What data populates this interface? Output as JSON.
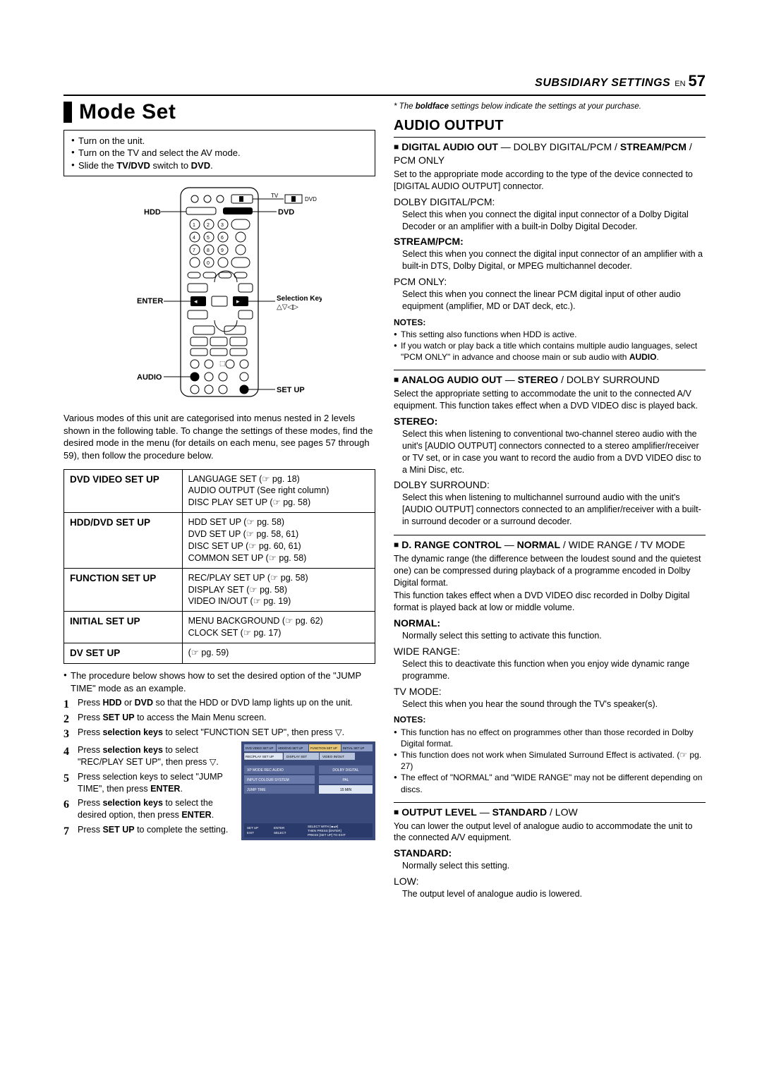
{
  "header": {
    "section": "SUBSIDIARY SETTINGS",
    "lang": "EN",
    "page": "57"
  },
  "footnote_pre": "* The ",
  "footnote_b": "boldface",
  "footnote_post": " settings below indicate the settings at your purchase.",
  "left": {
    "title": "Mode Set",
    "box": [
      "Turn on the unit.",
      "Turn on the TV and select the AV mode.",
      "Slide the TV/DVD switch to DVD."
    ],
    "box_line3_pre": "Slide the ",
    "box_line3_b": "TV/DVD",
    "box_line3_mid": " switch to ",
    "box_line3_b2": "DVD",
    "remote_labels": {
      "hdd": "HDD",
      "dvd": "DVD",
      "enter": "ENTER",
      "audio": "AUDIO",
      "setup": "SET UP",
      "selkeys": "Selection Keys",
      "selsym": "△▽◁▷",
      "tvdvd_tv": "TV",
      "tvdvd_dvd": "DVD"
    },
    "intro": "Various modes of this unit are categorised into menus nested in 2 levels shown in the following table. To change the settings of these modes, find the desired mode in the menu (for details on each menu, see pages 57 through 59), then follow the procedure below.",
    "menus": [
      {
        "h": "DVD VIDEO SET UP",
        "items": [
          "LANGUAGE SET (☞ pg. 18)",
          "AUDIO OUTPUT (See right column)",
          "DISC PLAY SET UP (☞ pg. 58)"
        ]
      },
      {
        "h": "HDD/DVD SET UP",
        "items": [
          "HDD SET UP (☞ pg. 58)",
          "DVD SET UP (☞ pg. 58, 61)",
          "DISC SET UP (☞ pg. 60, 61)",
          "COMMON SET UP (☞ pg. 58)"
        ]
      },
      {
        "h": "FUNCTION SET UP",
        "items": [
          "REC/PLAY SET UP (☞ pg. 58)",
          "DISPLAY SET (☞ pg. 58)",
          "VIDEO IN/OUT (☞ pg. 19)"
        ]
      },
      {
        "h": "INITIAL SET UP",
        "items": [
          "MENU BACKGROUND (☞ pg. 62)",
          "CLOCK SET (☞ pg. 17)"
        ]
      },
      {
        "h": "DV SET UP",
        "items": [
          "(☞ pg. 59)"
        ]
      }
    ],
    "pre_step": "The procedure below shows how to set the desired option of the \"JUMP TIME\" mode as an example.",
    "steps": {
      "s1_pre": "Press ",
      "s1_b": "HDD",
      "s1_mid": " or ",
      "s1_b2": "DVD",
      "s1_post": " so that the HDD or DVD lamp lights up on the unit.",
      "s2_pre": "Press ",
      "s2_b": "SET UP",
      "s2_post": " to access the Main Menu screen.",
      "s3_pre": "Press ",
      "s3_b": "selection keys",
      "s3_post": " to select \"FUNCTION SET UP\", then press ▽.",
      "s4_pre": "Press ",
      "s4_b": "selection keys",
      "s4_post": " to select \"REC/PLAY SET UP\", then press ▽.",
      "s5": "Press selection keys to select \"JUMP TIME\", then press ",
      "s5_b": "ENTER",
      "s6_pre": "Press ",
      "s6_b": "selection keys",
      "s6_post": " to select the desired option, then press ",
      "s6_b2": "ENTER",
      "s7_pre": "Press ",
      "s7_b": "SET UP",
      "s7_post": " to complete the setting."
    },
    "osd": {
      "tabs": [
        "DVD VIDEO SET UP",
        "HDD/DVD SET UP",
        "FUNCTION SET UP",
        "INITIAL SET UP"
      ],
      "subtabs": [
        "REC/PLAY SET UP",
        "DISPLAY SET",
        "VIDEO IN/OUT"
      ],
      "rows": [
        [
          "XP MODE REC AUDIO",
          "DOLBY DIGITAL"
        ],
        [
          "INPUT COLOUR SYSTEM",
          "PAL"
        ],
        [
          "JUMP TIME",
          "15 MIN"
        ]
      ],
      "foot_l": "SET UP\nEXIT",
      "foot_m": "ENTER\nSELECT",
      "foot_r": "SELECT WITH [◂▸▴▾]\nTHEN PRESS [ENTER]\nPRESS [SET UP] TO EXIT"
    }
  },
  "right": {
    "title": "AUDIO OUTPUT",
    "s1": {
      "head_pre": "DIGITAL AUDIO OUT",
      "head_mid": " — DOLBY DIGITAL/PCM / ",
      "head_b": "STREAM/PCM",
      "head_post": " / PCM ONLY",
      "body": "Set to the appropriate mode according to the type of the device connected to [DIGITAL AUDIO OUTPUT] connector.",
      "opts": [
        {
          "t": "DOLBY DIGITAL/PCM:",
          "bold": false,
          "d": "Select this when you connect the digital input connector of a Dolby Digital Decoder or an amplifier with a built-in Dolby Digital Decoder."
        },
        {
          "t": "STREAM/PCM:",
          "bold": true,
          "d": "Select this when you connect the digital input connector of an amplifier with a built-in DTS, Dolby Digital, or MPEG multichannel decoder."
        },
        {
          "t": "PCM ONLY:",
          "bold": false,
          "d": "Select this when you connect the linear PCM digital input of other audio equipment (amplifier, MD or DAT deck, etc.)."
        }
      ],
      "notes": [
        "This setting also functions when HDD is active.",
        "If you watch or play back a title which contains multiple audio languages, select \"PCM ONLY\" in advance and choose main or sub audio with AUDIO."
      ],
      "note2_pre": "If you watch or play back a title which contains multiple audio languages, select \"PCM ONLY\" in advance and choose main or sub audio with ",
      "note2_b": "AUDIO"
    },
    "s2": {
      "head_pre": "ANALOG AUDIO OUT",
      "head_mid": " — ",
      "head_b": "STEREO",
      "head_post": " / DOLBY SURROUND",
      "body": "Select the appropriate setting to accommodate the unit to the connected A/V equipment. This function takes effect when a DVD VIDEO disc is played back.",
      "opts": [
        {
          "t": "STEREO:",
          "bold": true,
          "d": "Select this when listening to conventional two-channel stereo audio with the unit's [AUDIO OUTPUT] connectors connected to a stereo amplifier/receiver or TV set, or in case you want to record the audio from a DVD VIDEO disc to a Mini Disc, etc."
        },
        {
          "t": "DOLBY SURROUND:",
          "bold": false,
          "d": "Select this when listening to multichannel surround audio with the unit's [AUDIO OUTPUT] connectors connected to an amplifier/receiver with a built-in surround decoder or a surround decoder."
        }
      ]
    },
    "s3": {
      "head_pre": "D. RANGE CONTROL",
      "head_mid": " — ",
      "head_b": "NORMAL",
      "head_post": " / WIDE RANGE / TV MODE",
      "body": "The dynamic range (the difference between the loudest sound and the quietest one) can be compressed during playback of a programme encoded in Dolby Digital format.",
      "body2": "This function takes effect when a DVD VIDEO disc recorded in Dolby Digital format is played back at low or middle volume.",
      "opts": [
        {
          "t": "NORMAL:",
          "bold": true,
          "d": "Normally select this setting to activate this function."
        },
        {
          "t": "WIDE RANGE:",
          "bold": false,
          "d": "Select this to deactivate this function when you enjoy wide dynamic range programme."
        },
        {
          "t": "TV MODE:",
          "bold": false,
          "d": "Select this when you hear the sound through the TV's speaker(s)."
        }
      ],
      "notes": [
        "This function has no effect on programmes other than those recorded in Dolby Digital format.",
        "This function does not work when Simulated Surround Effect is activated. (☞ pg. 27)",
        "The effect of \"NORMAL\" and \"WIDE RANGE\" may not be different depending on discs."
      ]
    },
    "s4": {
      "head_pre": "OUTPUT LEVEL",
      "head_mid": " — ",
      "head_b": "STANDARD",
      "head_post": " / LOW",
      "body": "You can lower the output level of analogue audio to accommodate the unit to the connected A/V equipment.",
      "opts": [
        {
          "t": "STANDARD:",
          "bold": true,
          "d": "Normally select this setting."
        },
        {
          "t": "LOW:",
          "bold": false,
          "d": "The output level of analogue audio is lowered."
        }
      ]
    },
    "notes_label": "NOTES:"
  }
}
